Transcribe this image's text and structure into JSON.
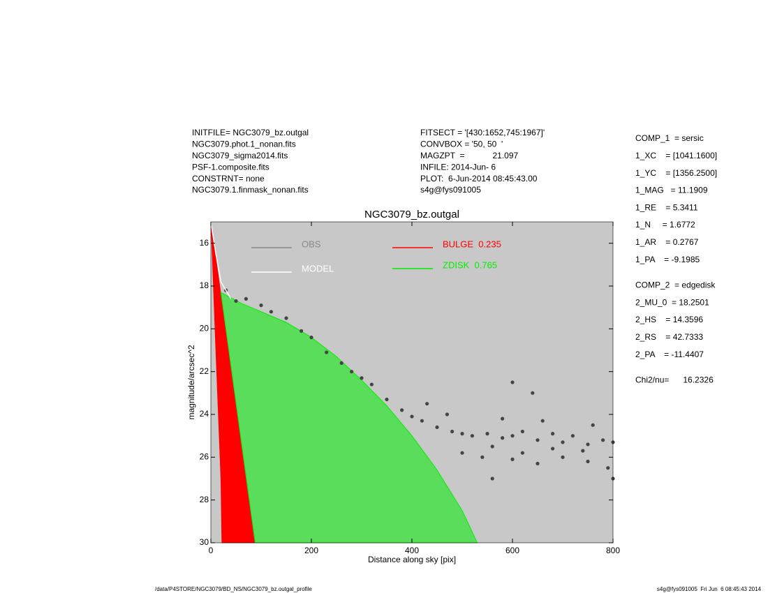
{
  "header": {
    "left": [
      "INITFILE= NGC3079_bz.outgal",
      "NGC3079.phot.1_nonan.fits",
      "NGC3079_sigma2014.fits",
      "PSF-1.composite.fits",
      "CONSTRNT= none",
      "NGC3079.1.finmask_nonan.fits"
    ],
    "middle": [
      "FITSECT = '[430:1652,745:1967]'",
      "CONVBOX = '50, 50  '",
      "MAGZPT  =            21.097",
      "INFILE: 2014-Jun- 6",
      "PLOT:  6-Jun-2014 08:45:43.00",
      "s4g@fys091005"
    ]
  },
  "right_panel": [
    [
      "COMP_1  = sersic",
      "1_XC    = [1041.1600]",
      "1_YC    = [1356.2500]",
      "1_MAG   = 11.1909",
      "1_RE    = 5.3411",
      "1_N     = 1.6772",
      "1_AR    = 0.2767",
      "1_PA    = -9.1985"
    ],
    [
      "COMP_2  = edgedisk",
      "2_MU_0  = 18.2501",
      "2_HS    = 14.3596",
      "2_RS    = 42.7333",
      "2_PA    = -11.4407"
    ],
    [
      "Chi2/nu=      16.2326"
    ]
  ],
  "footer": {
    "left": "/data/P4STORE/NGC3079/BD_NS/NGC3079_bz.outgal_profile",
    "right": "s4g@fys091005  Fri Jun  6 08:45:43 2014"
  },
  "chart_data": {
    "type": "scatter",
    "title": "NGC3079_bz.outgal",
    "xlabel": "Distance along sky [pix]",
    "ylabel": "magnitude/arcsec^2",
    "xlim": [
      0,
      800
    ],
    "xticks": [
      0,
      200,
      400,
      600,
      800
    ],
    "ylim": [
      30,
      15
    ],
    "yticks": [
      16,
      18,
      20,
      22,
      24,
      26,
      28,
      30
    ],
    "background": "#c8c8c8",
    "series": [
      {
        "name": "OBS",
        "color": "#444444",
        "style": "points",
        "x": [
          30,
          50,
          70,
          100,
          120,
          150,
          180,
          200,
          230,
          260,
          280,
          300,
          320,
          350,
          380,
          400,
          420,
          450,
          480,
          500,
          520,
          550,
          580,
          600,
          620,
          650,
          680,
          700,
          720,
          750,
          780,
          800,
          540,
          600,
          650,
          700,
          750,
          790,
          500,
          560,
          620,
          680,
          740,
          470,
          430,
          580,
          660,
          760,
          800,
          600,
          640,
          560
        ],
        "values": [
          18.2,
          18.7,
          18.6,
          18.9,
          19.2,
          19.5,
          20.1,
          20.4,
          21.1,
          21.6,
          22.0,
          22.3,
          22.6,
          23.3,
          23.8,
          24.1,
          24.3,
          24.6,
          24.8,
          24.9,
          25.0,
          24.9,
          25.1,
          25.0,
          24.8,
          25.2,
          24.9,
          25.3,
          25.0,
          25.4,
          25.2,
          25.3,
          26.0,
          26.1,
          26.3,
          26.0,
          26.2,
          26.5,
          25.8,
          25.5,
          25.8,
          25.6,
          25.7,
          24.0,
          23.5,
          24.2,
          24.3,
          24.5,
          27.0,
          22.5,
          23.0,
          27.0
        ]
      },
      {
        "name": "MODEL",
        "color": "#ffffff",
        "style": "line",
        "x": [
          0,
          10,
          20,
          40
        ],
        "values": [
          15,
          16.5,
          17.8,
          18.6
        ]
      },
      {
        "name": "BULGE  0.235",
        "color": "#ff0000",
        "style": "area",
        "x": [
          0,
          88,
          22,
          20,
          10,
          2
        ],
        "values": [
          15,
          30,
          30,
          27,
          21,
          16
        ]
      },
      {
        "name": "ZDISK  0.765",
        "color": "#00ee00",
        "style": "area",
        "x": [
          20,
          60,
          100,
          150,
          200,
          250,
          300,
          350,
          400,
          450,
          500,
          530,
          88
        ],
        "values": [
          18.3,
          18.8,
          19.2,
          19.7,
          20.4,
          21.3,
          22.4,
          23.6,
          25.0,
          26.6,
          28.5,
          30,
          30
        ]
      }
    ]
  }
}
